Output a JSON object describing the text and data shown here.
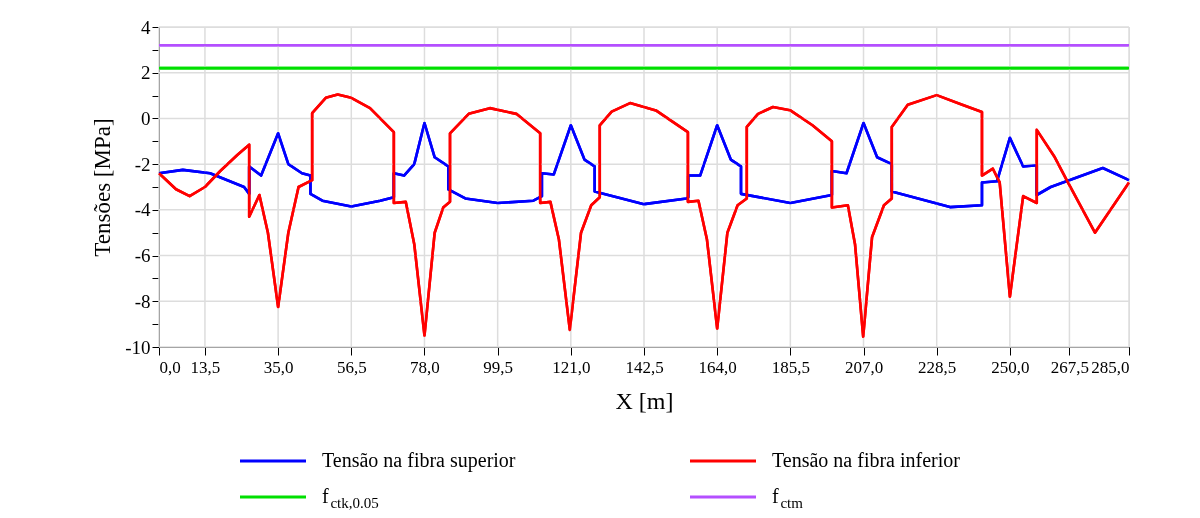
{
  "chart_data": {
    "type": "line",
    "xlabel": "X [m]",
    "ylabel": "Tensões [MPa]",
    "xlim": [
      0,
      285
    ],
    "ylim": [
      -10,
      4
    ],
    "xticks": [
      {
        "value": 0,
        "label": "0,0"
      },
      {
        "value": 13.5,
        "label": "13,5"
      },
      {
        "value": 35,
        "label": "35,0"
      },
      {
        "value": 56.5,
        "label": "56,5"
      },
      {
        "value": 78,
        "label": "78,0"
      },
      {
        "value": 99.5,
        "label": "99,5"
      },
      {
        "value": 121,
        "label": "121,0"
      },
      {
        "value": 142.5,
        "label": "142,5"
      },
      {
        "value": 164,
        "label": "164,0"
      },
      {
        "value": 185.5,
        "label": "185,5"
      },
      {
        "value": 207,
        "label": "207,0"
      },
      {
        "value": 228.5,
        "label": "228,5"
      },
      {
        "value": 250,
        "label": "250,0"
      },
      {
        "value": 267.5,
        "label": "267,5"
      },
      {
        "value": 285,
        "label": "285,0"
      }
    ],
    "yticks": [
      -10,
      {
        "value": -9,
        "label": null
      },
      -8,
      {
        "value": -7,
        "label": null
      },
      -6,
      {
        "value": -5,
        "label": null
      },
      -4,
      {
        "value": -3,
        "label": null
      },
      -2,
      {
        "value": -1,
        "label": null
      },
      0,
      {
        "value": 1,
        "label": null
      },
      2,
      {
        "value": 3,
        "label": null
      },
      4
    ],
    "grid": true,
    "legend": "bottom",
    "marker": "none",
    "line_style": "solid",
    "series": [
      {
        "name": "Tensão na fibra superior",
        "color": "#0000ff",
        "x": [
          0,
          7,
          15,
          25,
          26.5,
          26.5,
          30,
          35,
          38,
          42,
          44.5,
          44.5,
          48,
          56.5,
          65,
          69,
          69,
          72,
          75,
          78,
          81,
          85,
          85,
          90,
          99.5,
          110,
          112.5,
          112.5,
          116,
          121,
          125,
          128,
          128,
          142.5,
          155,
          155.5,
          155.5,
          159,
          164,
          168,
          171,
          171,
          185.5,
          197.7,
          197.7,
          202,
          207,
          211,
          215.3,
          215.3,
          232.4,
          241.8,
          241.8,
          246.2,
          250,
          253.9,
          257.9,
          257.9,
          262,
          277.3,
          285
        ],
        "values": [
          -2.4,
          -2.25,
          -2.4,
          -3.0,
          -3.3,
          -2.1,
          -2.5,
          -0.65,
          -2.0,
          -2.4,
          -2.5,
          -3.3,
          -3.6,
          -3.85,
          -3.6,
          -3.45,
          -2.4,
          -2.5,
          -2.0,
          -0.2,
          -1.7,
          -2.1,
          -3.1,
          -3.5,
          -3.7,
          -3.6,
          -3.4,
          -2.4,
          -2.45,
          -0.3,
          -1.8,
          -2.1,
          -3.2,
          -3.75,
          -3.5,
          -3.45,
          -2.5,
          -2.5,
          -0.3,
          -1.8,
          -2.1,
          -3.3,
          -3.7,
          -3.35,
          -2.3,
          -2.4,
          -0.2,
          -1.7,
          -2.0,
          -3.2,
          -3.88,
          -3.8,
          -2.8,
          -2.75,
          -0.85,
          -2.1,
          -2.05,
          -3.35,
          -3.0,
          -2.17,
          -2.7
        ]
      },
      {
        "name": "Tensão na fibra inferior",
        "color": "#ff0000",
        "x": [
          0,
          5,
          9,
          13.5,
          18,
          23,
          26.5,
          26.5,
          29.5,
          32,
          35,
          38,
          41,
          45,
          45,
          49,
          52.5,
          56.5,
          62,
          69,
          69,
          72.5,
          75,
          78,
          81,
          83.5,
          85.5,
          85.5,
          91,
          97.2,
          105,
          112,
          112,
          115,
          117.5,
          120.7,
          124,
          127,
          129.5,
          129.5,
          133,
          138.4,
          146,
          155.4,
          155.4,
          158.5,
          161,
          164,
          167,
          170,
          172.7,
          172.7,
          176,
          180.4,
          185.4,
          192,
          197.7,
          197.7,
          202.4,
          204.5,
          206.9,
          209.5,
          213,
          215.3,
          215.3,
          220,
          228.5,
          236,
          241.8,
          241.8,
          245,
          247,
          250,
          253.9,
          257.9,
          257.9,
          263.2,
          266.7,
          275,
          285
        ],
        "values": [
          -2.4,
          -3.1,
          -3.4,
          -3.0,
          -2.3,
          -1.6,
          -1.15,
          -4.3,
          -3.35,
          -5.0,
          -8.25,
          -5.0,
          -3.0,
          -2.7,
          0.23,
          0.9,
          1.05,
          0.9,
          0.45,
          -0.6,
          -3.7,
          -3.65,
          -5.5,
          -9.5,
          -5.0,
          -3.9,
          -3.65,
          -0.65,
          0.2,
          0.45,
          0.2,
          -0.65,
          -3.7,
          -3.65,
          -5.3,
          -9.25,
          -5.0,
          -3.8,
          -3.45,
          -0.3,
          0.3,
          0.67,
          0.35,
          -0.6,
          -3.65,
          -3.6,
          -5.3,
          -9.2,
          -5.0,
          -3.8,
          -3.5,
          -0.37,
          0.2,
          0.5,
          0.36,
          -0.3,
          -1.0,
          -3.9,
          -3.8,
          -5.5,
          -9.55,
          -5.2,
          -3.8,
          -3.5,
          -0.37,
          0.6,
          1.02,
          0.6,
          0.28,
          -2.5,
          -2.2,
          -2.8,
          -7.8,
          -3.4,
          -3.7,
          -0.5,
          -1.7,
          -2.7,
          -5.0,
          -2.8
        ]
      },
      {
        "name": "f$_{ctk,0.05}$",
        "color": "#00e000",
        "x": [
          0,
          285
        ],
        "values": [
          2.2,
          2.2
        ]
      },
      {
        "name": "f$_{ctm}$",
        "color": "#b44fff",
        "x": [
          0,
          285
        ],
        "values": [
          3.2,
          3.2
        ]
      }
    ]
  }
}
